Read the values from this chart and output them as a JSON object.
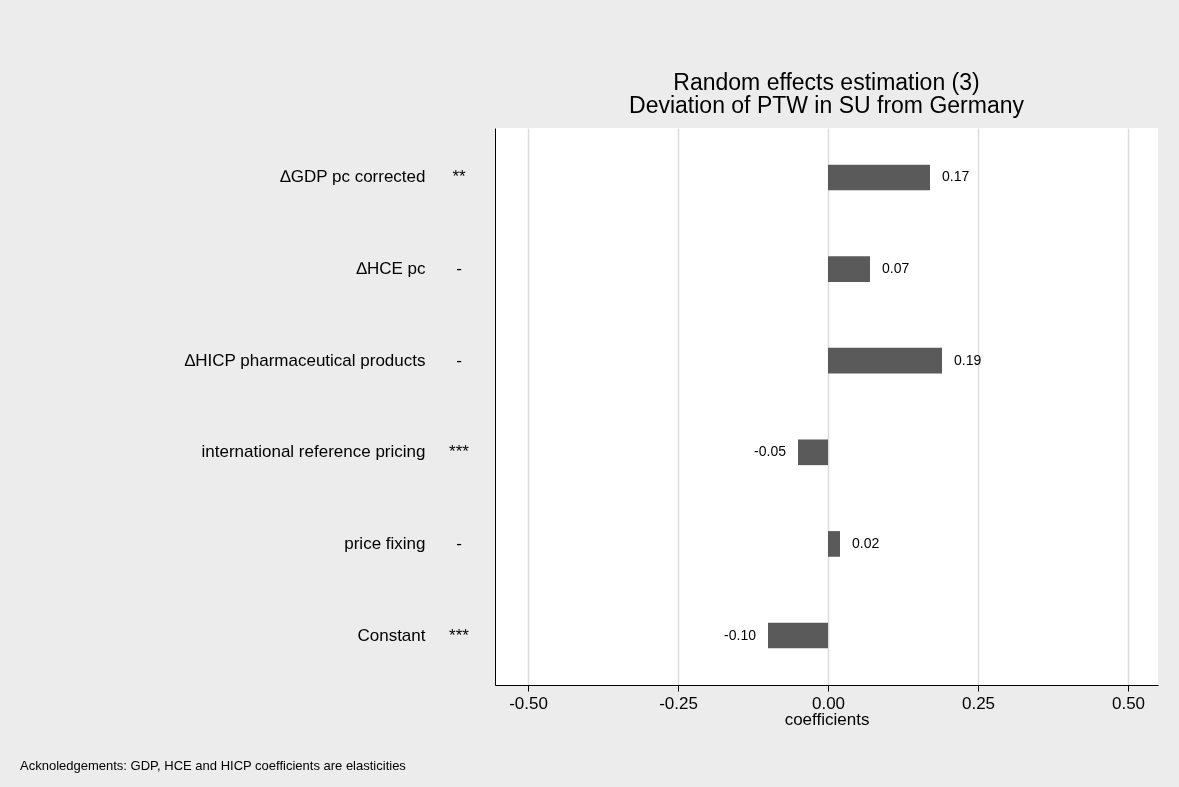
{
  "chart_data": {
    "type": "bar",
    "orientation": "horizontal",
    "title": "Random effects estimation (3)",
    "subtitle": "Deviation of PTW in SU from Germany",
    "xlabel": "coefficients",
    "categories": [
      "∆GDP pc corrected",
      "∆HCE pc",
      "∆HICP pharmaceutical products",
      "international reference pricing",
      "price fixing",
      "Constant"
    ],
    "values": [
      0.17,
      0.07,
      0.19,
      -0.05,
      0.02,
      -0.1
    ],
    "value_labels": [
      "0.17",
      "0.07",
      "0.19",
      "-0.05",
      "0.02",
      "-0.10"
    ],
    "color": "#5a5a5a",
    "xlim": [
      -0.555,
      0.55
    ],
    "xticks": [
      {
        "value": -0.5,
        "label": "-0.50"
      },
      {
        "value": -0.25,
        "label": "-0.25"
      },
      {
        "value": 0,
        "label": "0.00"
      },
      {
        "value": 0.25,
        "label": "0.25"
      },
      {
        "value": 0.5,
        "label": "0.50"
      }
    ],
    "grid": "x",
    "annotations": [
      "**",
      "-",
      "-",
      "***",
      "-",
      "***",
      "Acknoledgements: GDP, HCE and HICP coefficients are elasticities"
    ]
  }
}
